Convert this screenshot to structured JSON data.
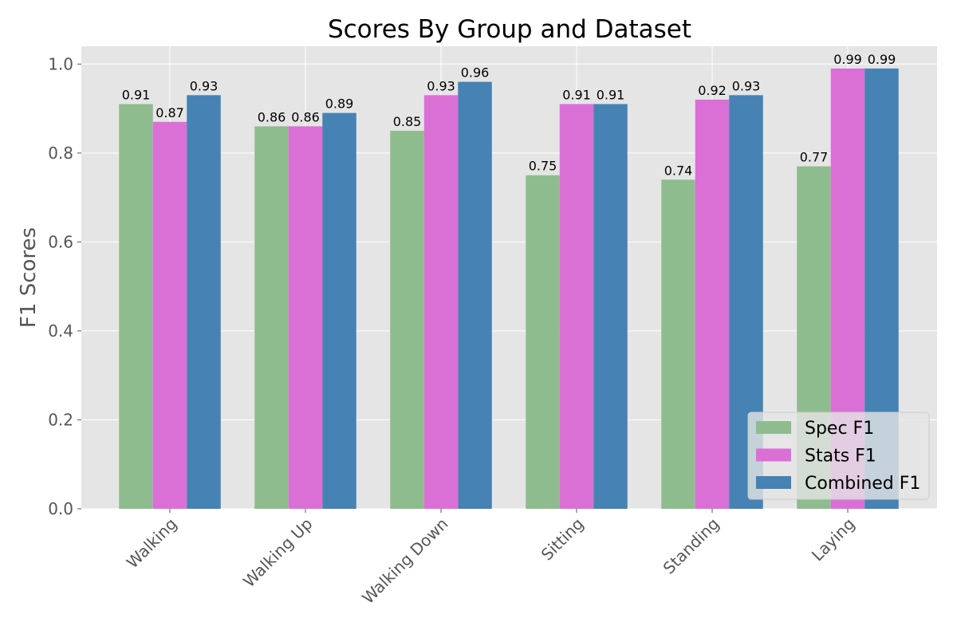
{
  "chart_data": {
    "type": "bar",
    "title": "Scores By Group and Dataset",
    "xlabel": "",
    "ylabel": "F1 Scores",
    "categories": [
      "Walking",
      "Walking Up",
      "Walking Down",
      "Sitting",
      "Standing",
      "Laying"
    ],
    "series": [
      {
        "name": "Spec F1",
        "color": "#8fbc8f",
        "values": [
          0.91,
          0.86,
          0.85,
          0.75,
          0.74,
          0.77
        ]
      },
      {
        "name": "Stats F1",
        "color": "#da70d6",
        "values": [
          0.87,
          0.86,
          0.93,
          0.91,
          0.92,
          0.99
        ]
      },
      {
        "name": "Combined F1",
        "color": "#4682b4",
        "values": [
          0.93,
          0.89,
          0.96,
          0.91,
          0.93,
          0.99
        ]
      }
    ],
    "ylim": [
      0,
      1.04
    ],
    "yticks": [
      "0.0",
      "0.2",
      "0.4",
      "0.6",
      "0.8",
      "1.0"
    ],
    "grid": true,
    "legend_position": "bottom-right",
    "background": "#e5e5e5"
  }
}
